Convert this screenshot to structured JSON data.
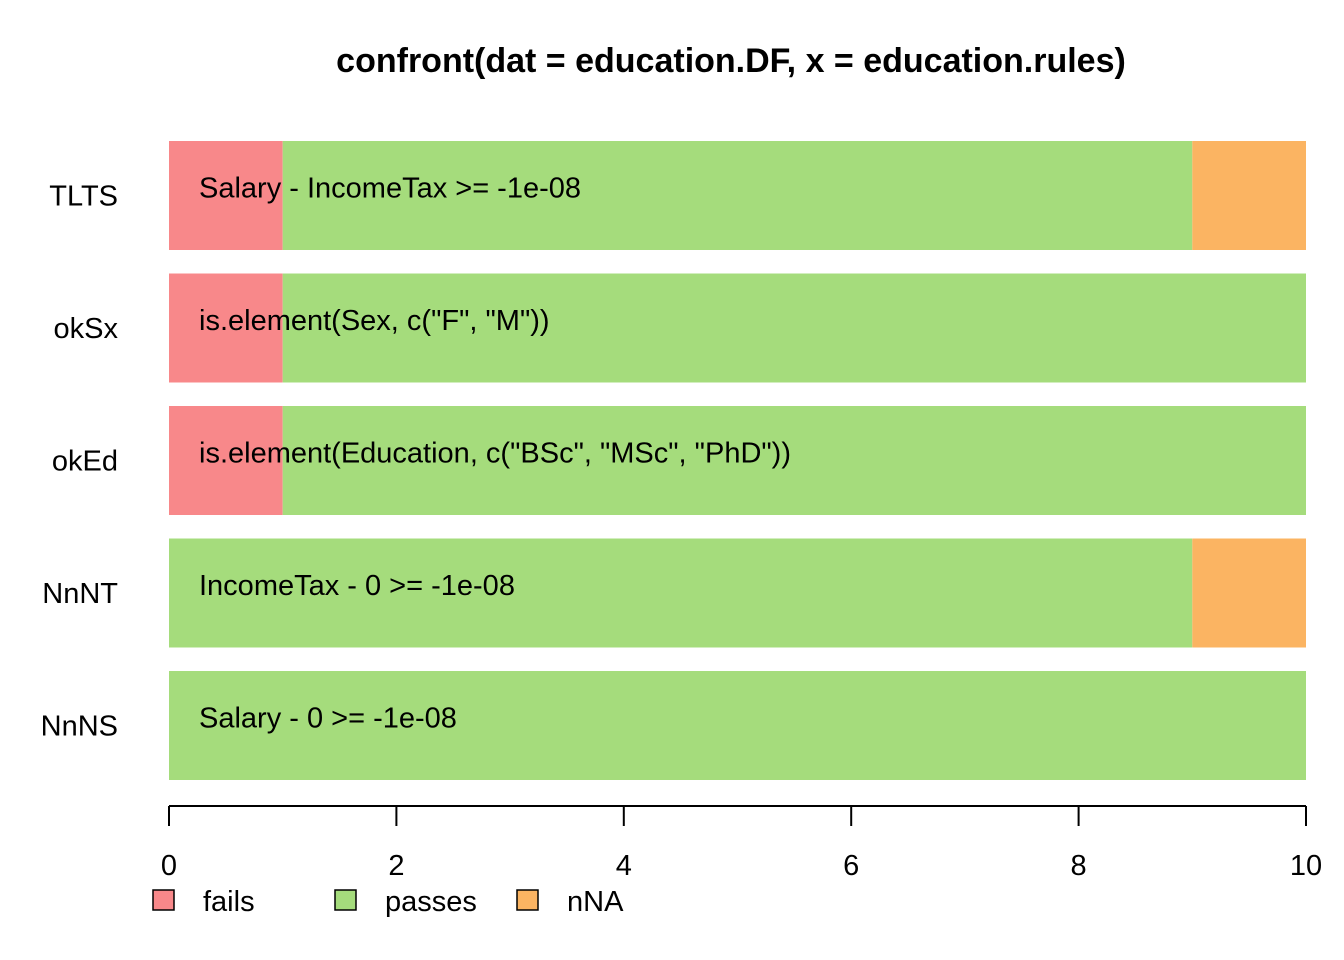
{
  "chart_data": {
    "type": "bar",
    "orientation": "horizontal",
    "stacked": true,
    "title": "confront(dat = education.DF, x = education.rules)",
    "xlabel": "",
    "ylabel": "",
    "xlim": [
      0,
      10
    ],
    "x_ticks": [
      "0",
      "2",
      "4",
      "6",
      "8",
      "10"
    ],
    "categories": [
      "TLTS",
      "okSx",
      "okEd",
      "NnNT",
      "NnNS"
    ],
    "rule_labels": [
      "Salary - IncomeTax >= -1e-08",
      "is.element(Sex, c(\"F\", \"M\"))",
      "is.element(Education, c(\"BSc\", \"MSc\", \"PhD\"))",
      "IncomeTax - 0 >= -1e-08",
      "Salary - 0 >= -1e-08"
    ],
    "series": [
      {
        "name": "fails",
        "color": "#F8888A",
        "values": [
          1,
          1,
          1,
          0,
          0
        ]
      },
      {
        "name": "passes",
        "color": "#A5DC7C",
        "values": [
          8,
          9,
          9,
          9,
          10
        ]
      },
      {
        "name": "nNA",
        "color": "#FBB462",
        "values": [
          1,
          0,
          0,
          1,
          0
        ]
      }
    ],
    "legend_position": "bottom-left",
    "grid": false
  }
}
